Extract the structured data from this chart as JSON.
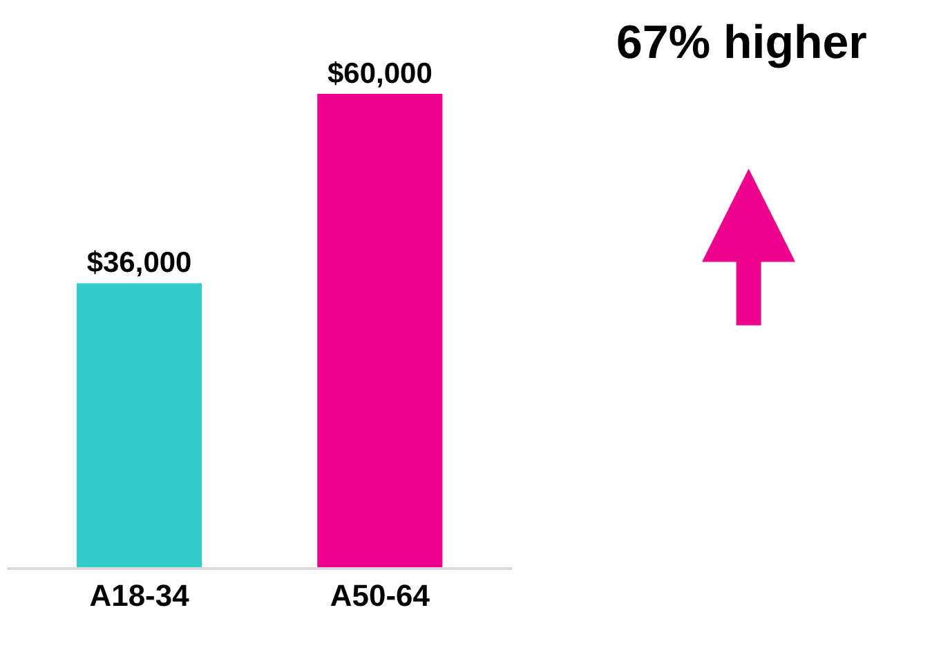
{
  "chart_data": {
    "type": "bar",
    "categories": [
      "A18-34",
      "A50-64"
    ],
    "values": [
      36000,
      60000
    ],
    "colors": [
      "#33cccc",
      "#ec008c"
    ],
    "value_labels": [
      "$36,000",
      "$60,000"
    ],
    "annotations": [
      "67% higher"
    ],
    "tick_labels": "x",
    "legend": false
  }
}
